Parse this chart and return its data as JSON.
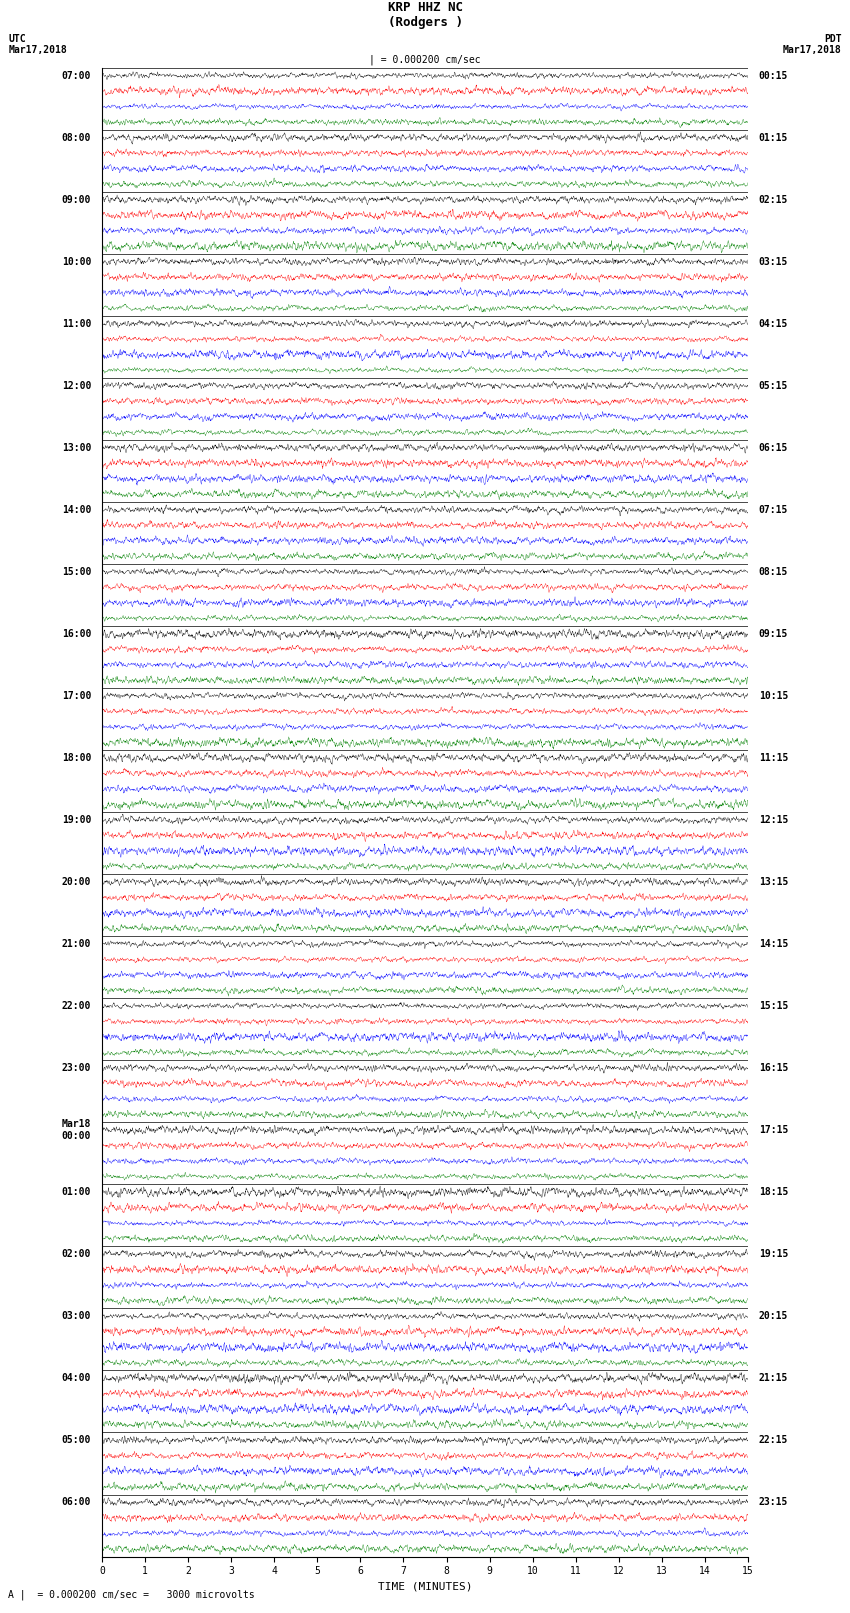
{
  "title_line1": "KRP HHZ NC",
  "title_line2": "(Rodgers )",
  "scale_label": "| = 0.000200 cm/sec",
  "footer_label": "A |  = 0.000200 cm/sec =   3000 microvolts",
  "utc_label": "UTC\nMar17,2018",
  "pdt_label": "PDT\nMar17,2018",
  "xlabel": "TIME (MINUTES)",
  "left_times": [
    "07:00",
    "08:00",
    "09:00",
    "10:00",
    "11:00",
    "12:00",
    "13:00",
    "14:00",
    "15:00",
    "16:00",
    "17:00",
    "18:00",
    "19:00",
    "20:00",
    "21:00",
    "22:00",
    "23:00",
    "Mar18\n00:00",
    "01:00",
    "02:00",
    "03:00",
    "04:00",
    "05:00",
    "06:00"
  ],
  "right_times": [
    "00:15",
    "01:15",
    "02:15",
    "03:15",
    "04:15",
    "05:15",
    "06:15",
    "07:15",
    "08:15",
    "09:15",
    "10:15",
    "11:15",
    "12:15",
    "13:15",
    "14:15",
    "15:15",
    "16:15",
    "17:15",
    "18:15",
    "19:15",
    "20:15",
    "21:15",
    "22:15",
    "23:15"
  ],
  "colors_cycle": [
    "black",
    "red",
    "blue",
    "green"
  ],
  "n_rows": 96,
  "n_groups": 24,
  "n_minutes": 15,
  "samples_per_minute": 200,
  "bg_color": "white",
  "trace_amplitude": 0.45,
  "font_size_title": 9,
  "font_size_labels": 7,
  "font_size_ticks": 7,
  "font_size_footer": 7,
  "xmin": 0,
  "xmax": 15
}
